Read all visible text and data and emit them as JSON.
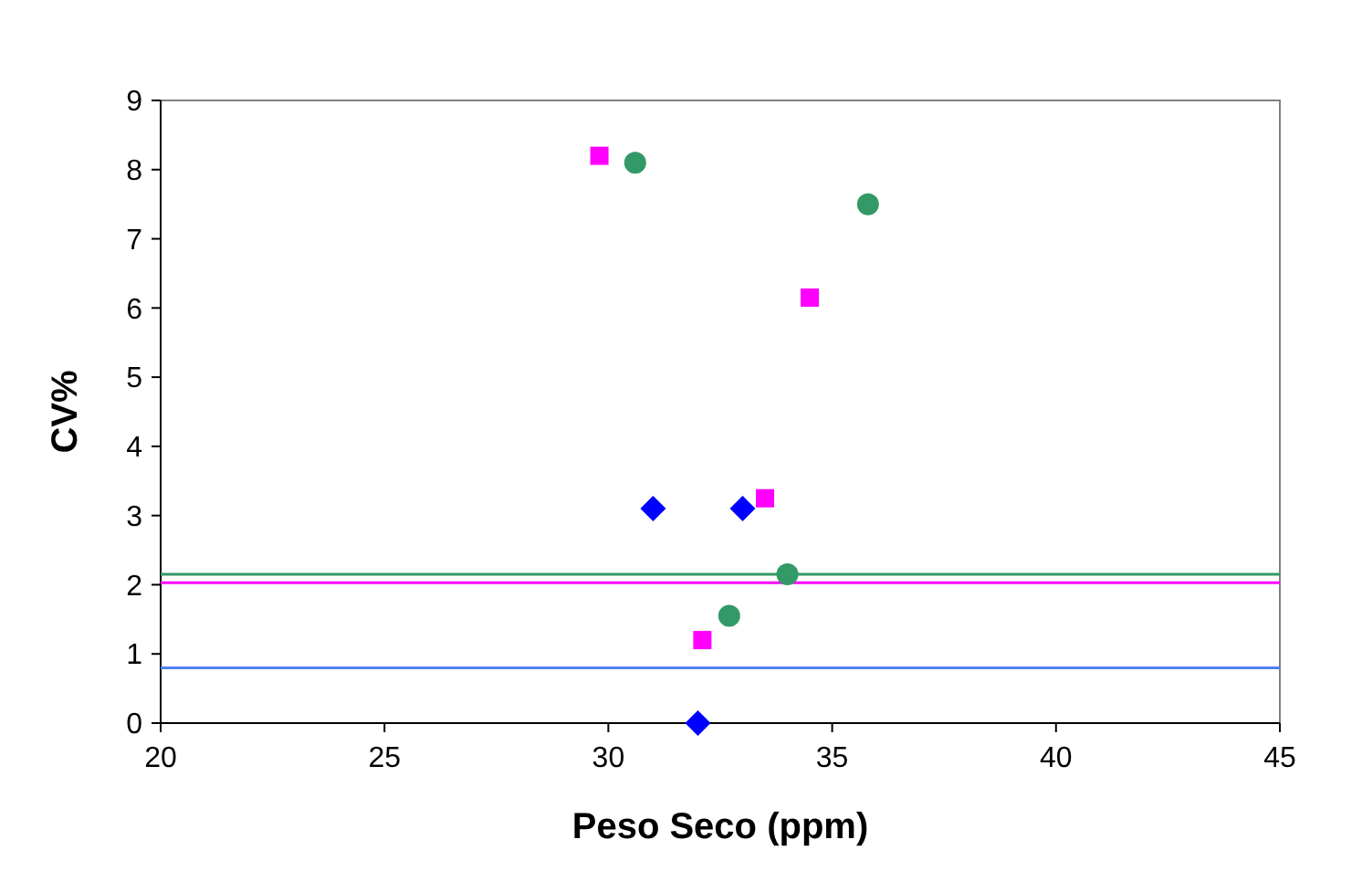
{
  "chart_data": {
    "type": "scatter",
    "xlabel": "Peso Seco (ppm)",
    "ylabel": "CV%",
    "xlim": [
      20,
      45
    ],
    "xticks": [
      20,
      25,
      30,
      35,
      40,
      45
    ],
    "ylim": [
      0,
      9
    ],
    "yticks": [
      0,
      1,
      2,
      3,
      4,
      5,
      6,
      7,
      8,
      9
    ],
    "grid": false,
    "series": [
      {
        "color": "#ff00ff",
        "marker": "square",
        "x": [
          29.8,
          34.5,
          33.5,
          32.1
        ],
        "values": [
          8.2,
          6.15,
          3.25,
          1.2
        ]
      },
      {
        "color": "#339966",
        "marker": "circle",
        "x": [
          30.6,
          35.8,
          34,
          32.7
        ],
        "values": [
          8.1,
          7.5,
          2.15,
          1.55
        ]
      },
      {
        "color": "#0000ff",
        "marker": "diamond",
        "x": [
          31,
          33,
          32
        ],
        "values": [
          3.1,
          3.1,
          0
        ]
      }
    ],
    "ref_lines": [
      {
        "axis": "y",
        "value": 2.15,
        "color": "#339966"
      },
      {
        "axis": "y",
        "value": 2.03,
        "color": "#ff00ff"
      },
      {
        "axis": "y",
        "value": 0.8,
        "color": "#4f81f0"
      }
    ]
  }
}
